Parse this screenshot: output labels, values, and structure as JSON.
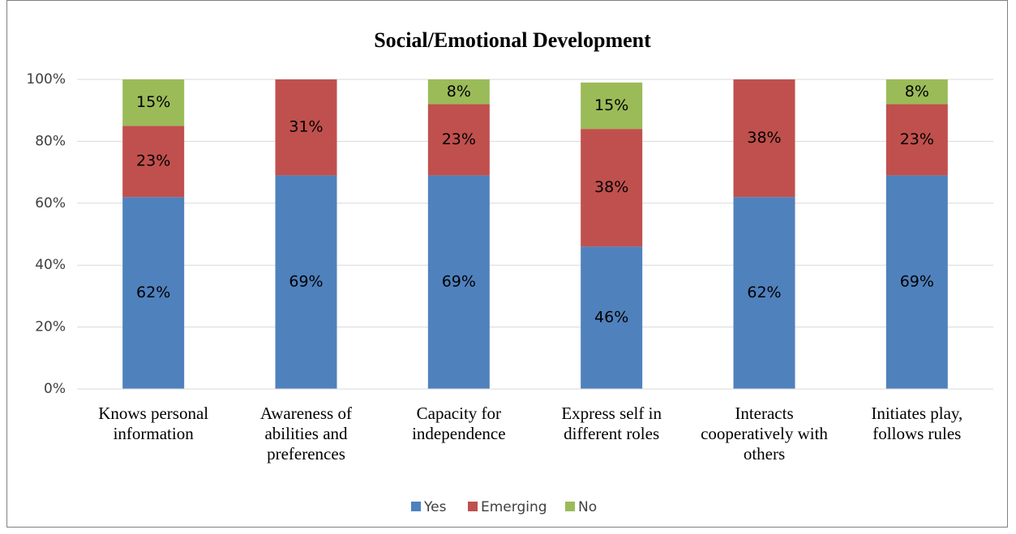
{
  "chart_data": {
    "type": "stacked_bar",
    "title": "Social/Emotional Development",
    "categories": [
      "Knows personal information",
      "Awareness of abilities and preferences",
      "Capacity for independence",
      "Express self in different roles",
      "Interacts cooperatively with others",
      "Initiates play, follows rules"
    ],
    "series": [
      {
        "name": "Yes",
        "color": "#4f81bd",
        "values": [
          62,
          69,
          69,
          46,
          62,
          69
        ],
        "value_labels": [
          "62%",
          "69%",
          "69%",
          "46%",
          "62%",
          "69%"
        ]
      },
      {
        "name": "Emerging",
        "color": "#c0504d",
        "values": [
          23,
          31,
          23,
          38,
          38,
          23
        ],
        "value_labels": [
          "23%",
          "31%",
          "23%",
          "38%",
          "38%",
          "23%"
        ]
      },
      {
        "name": "No",
        "color": "#9bbb59",
        "values": [
          15,
          0,
          8,
          15,
          0,
          8
        ],
        "value_labels": [
          "15%",
          null,
          "8%",
          "15%",
          null,
          "8%"
        ]
      }
    ],
    "ylim": [
      0,
      100
    ],
    "yticks": [
      {
        "value": 0,
        "label": "0%"
      },
      {
        "value": 20,
        "label": "20%"
      },
      {
        "value": 40,
        "label": "40%"
      },
      {
        "value": 60,
        "label": "60%"
      },
      {
        "value": 80,
        "label": "80%"
      },
      {
        "value": 100,
        "label": "100%"
      }
    ],
    "grid": true,
    "legend": "bottom"
  }
}
